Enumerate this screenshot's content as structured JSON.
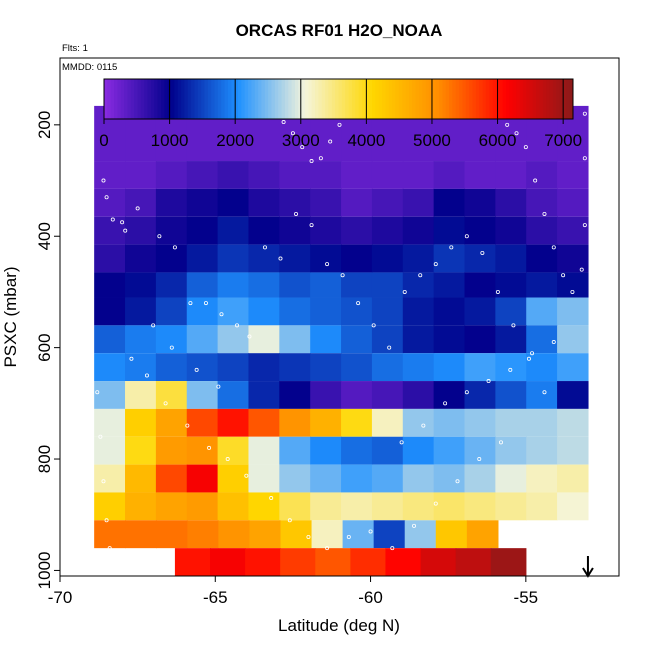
{
  "chart_data": {
    "type": "heatmap",
    "title": "ORCAS RF01 H2O_NOAA",
    "annotations": [
      "Flts: 1",
      "MMDD: 0115"
    ],
    "xlabel": "Latitude (deg N)",
    "ylabel": "PSXC (mbar)",
    "xlim": [
      -70,
      -52
    ],
    "ylim": [
      1010,
      80
    ],
    "x_ticks": [
      -70,
      -65,
      -60,
      -55
    ],
    "y_ticks": [
      200,
      400,
      600,
      800,
      1000
    ],
    "colorbar": {
      "min": 0,
      "max": 7150,
      "ticks": [
        0,
        1000,
        2000,
        3000,
        4000,
        5000,
        6000,
        7000
      ],
      "colors": [
        "#8a2be2",
        "#00008b",
        "#1e90ff",
        "#f5f5dc",
        "#ffd700",
        "#ff8c00",
        "#ff0000",
        "#8b1a1a"
      ]
    },
    "bands": [
      {
        "p_top": 166,
        "p_bot": 265,
        "x0": -68.9,
        "x1": -53.0,
        "values": [
          300,
          300,
          300,
          300,
          300,
          300,
          300,
          300,
          300,
          300,
          300,
          300,
          300,
          300,
          300,
          300
        ]
      },
      {
        "p_top": 265,
        "p_bot": 315,
        "x0": -68.9,
        "x1": -53.0,
        "values": [
          300,
          300,
          400,
          500,
          600,
          500,
          400,
          400,
          300,
          300,
          300,
          400,
          300,
          300,
          400,
          300
        ]
      },
      {
        "p_top": 315,
        "p_bot": 365,
        "x0": -68.9,
        "x1": -53.0,
        "values": [
          400,
          500,
          800,
          900,
          1000,
          800,
          700,
          600,
          400,
          500,
          600,
          1000,
          900,
          700,
          500,
          400
        ]
      },
      {
        "p_top": 365,
        "p_bot": 415,
        "x0": -68.9,
        "x1": -53.0,
        "values": [
          600,
          700,
          900,
          1000,
          1200,
          1000,
          900,
          800,
          700,
          800,
          900,
          1100,
          1000,
          900,
          700,
          600
        ]
      },
      {
        "p_top": 415,
        "p_bot": 465,
        "x0": -68.9,
        "x1": -53.0,
        "values": [
          700,
          900,
          1000,
          1200,
          1400,
          1300,
          1200,
          1100,
          1000,
          1100,
          1200,
          1400,
          1300,
          1200,
          1000,
          900
        ]
      },
      {
        "p_top": 465,
        "p_bot": 510,
        "x0": -68.9,
        "x1": -53.0,
        "values": [
          1000,
          1100,
          1300,
          1700,
          1900,
          1800,
          1600,
          1700,
          1500,
          1500,
          1300,
          1200,
          1000,
          1100,
          1200,
          1100
        ]
      },
      {
        "p_top": 510,
        "p_bot": 560,
        "x0": -68.9,
        "x1": -53.0,
        "values": [
          1000,
          1200,
          1500,
          2000,
          2200,
          2000,
          1800,
          1700,
          1600,
          1500,
          1200,
          1100,
          1200,
          1500,
          2300,
          2500
        ]
      },
      {
        "p_top": 560,
        "p_bot": 610,
        "x0": -68.9,
        "x1": -53.0,
        "values": [
          1700,
          1900,
          2000,
          2300,
          2600,
          3000,
          2500,
          2000,
          1700,
          1500,
          1200,
          1100,
          1000,
          1200,
          1800,
          2600
        ]
      },
      {
        "p_top": 610,
        "p_bot": 660,
        "x0": -68.9,
        "x1": -53.0,
        "values": [
          2000,
          1900,
          1700,
          1600,
          1500,
          1300,
          1400,
          1500,
          1600,
          1800,
          1900,
          2000,
          2200,
          2100,
          2000,
          2200
        ]
      },
      {
        "p_top": 660,
        "p_bot": 710,
        "x0": -68.9,
        "x1": -53.0,
        "values": [
          2500,
          3300,
          3800,
          2500,
          1800,
          1300,
          1000,
          600,
          400,
          500,
          700,
          1000,
          1300,
          1600,
          1900,
          1100
        ]
      },
      {
        "p_top": 710,
        "p_bot": 760,
        "x0": -68.9,
        "x1": -53.0,
        "values": [
          3000,
          4200,
          4800,
          5600,
          6000,
          5500,
          5000,
          4600,
          4000,
          3200,
          2600,
          2500,
          2600,
          2700,
          2700,
          2800
        ]
      },
      {
        "p_top": 760,
        "p_bot": 810,
        "x0": -68.9,
        "x1": -53.0,
        "values": [
          3000,
          4000,
          4900,
          5000,
          3900,
          3000,
          2300,
          2000,
          1800,
          1700,
          2000,
          2200,
          2400,
          2600,
          2700,
          2800
        ]
      },
      {
        "p_top": 810,
        "p_bot": 860,
        "x0": -68.9,
        "x1": -53.0,
        "values": [
          3300,
          4500,
          5600,
          6200,
          4200,
          3000,
          2600,
          2400,
          2200,
          2300,
          2600,
          2500,
          2700,
          3000,
          3200,
          3300
        ]
      },
      {
        "p_top": 860,
        "p_bot": 910,
        "x0": -68.9,
        "x1": -53.0,
        "values": [
          4200,
          4600,
          4800,
          4900,
          4400,
          4100,
          3700,
          3400,
          3300,
          3400,
          3500,
          3600,
          3500,
          3400,
          3300,
          3100
        ]
      },
      {
        "p_top": 910,
        "p_bot": 960,
        "x0": -68.9,
        "x1": -55.9,
        "values": [
          5300,
          5300,
          5300,
          5200,
          5000,
          4800,
          4300,
          3200,
          2400,
          1500,
          2600,
          4300,
          4800
        ]
      },
      {
        "p_top": 960,
        "p_bot": 1010,
        "x0": -66.3,
        "x1": -55.0,
        "values": [
          6000,
          6200,
          6000,
          5700,
          5500,
          5800,
          6100,
          6500,
          6700,
          7000
        ]
      }
    ],
    "points": [
      [
        -68.6,
        300
      ],
      [
        -68.5,
        330
      ],
      [
        -68.3,
        370
      ],
      [
        -68.0,
        375
      ],
      [
        -67.6,
        180
      ],
      [
        -67.3,
        180
      ],
      [
        -67.0,
        180
      ],
      [
        -66.7,
        180
      ],
      [
        -66.4,
        180
      ],
      [
        -66.1,
        180
      ],
      [
        -65.8,
        180
      ],
      [
        -65.5,
        180
      ],
      [
        -65.2,
        180
      ],
      [
        -64.9,
        180
      ],
      [
        -64.6,
        180
      ],
      [
        -64.3,
        180
      ],
      [
        -64.0,
        180
      ],
      [
        -63.7,
        180
      ],
      [
        -63.4,
        180
      ],
      [
        -63.1,
        180
      ],
      [
        -62.8,
        195
      ],
      [
        -62.5,
        215
      ],
      [
        -62.2,
        240
      ],
      [
        -61.9,
        265
      ],
      [
        -61.6,
        260
      ],
      [
        -61.3,
        230
      ],
      [
        -61.0,
        200
      ],
      [
        -60.7,
        180
      ],
      [
        -60.4,
        180
      ],
      [
        -60.1,
        180
      ],
      [
        -59.8,
        180
      ],
      [
        -59.5,
        180
      ],
      [
        -59.2,
        180
      ],
      [
        -58.9,
        180
      ],
      [
        -58.6,
        180
      ],
      [
        -58.3,
        180
      ],
      [
        -58.0,
        180
      ],
      [
        -57.7,
        180
      ],
      [
        -57.4,
        180
      ],
      [
        -57.1,
        180
      ],
      [
        -56.8,
        180
      ],
      [
        -56.5,
        180
      ],
      [
        -56.2,
        180
      ],
      [
        -55.9,
        180
      ],
      [
        -55.6,
        200
      ],
      [
        -55.3,
        215
      ],
      [
        -55.0,
        240
      ],
      [
        -54.7,
        300
      ],
      [
        -54.4,
        360
      ],
      [
        -54.1,
        420
      ],
      [
        -53.8,
        470
      ],
      [
        -53.5,
        500
      ],
      [
        -53.2,
        460
      ],
      [
        -53.1,
        380
      ],
      [
        -53.1,
        260
      ],
      [
        -53.1,
        180
      ],
      [
        -67.9,
        390
      ],
      [
        -67.5,
        350
      ],
      [
        -66.8,
        400
      ],
      [
        -66.3,
        420
      ],
      [
        -65.8,
        520
      ],
      [
        -65.3,
        520
      ],
      [
        -64.8,
        540
      ],
      [
        -64.3,
        560
      ],
      [
        -63.9,
        580
      ],
      [
        -63.4,
        420
      ],
      [
        -62.9,
        440
      ],
      [
        -62.4,
        360
      ],
      [
        -61.9,
        380
      ],
      [
        -61.4,
        450
      ],
      [
        -60.9,
        470
      ],
      [
        -60.4,
        520
      ],
      [
        -59.9,
        560
      ],
      [
        -59.4,
        600
      ],
      [
        -58.9,
        500
      ],
      [
        -58.4,
        470
      ],
      [
        -57.9,
        450
      ],
      [
        -57.4,
        420
      ],
      [
        -56.9,
        400
      ],
      [
        -56.4,
        430
      ],
      [
        -55.9,
        500
      ],
      [
        -55.4,
        560
      ],
      [
        -54.9,
        620
      ],
      [
        -54.4,
        680
      ],
      [
        -67.2,
        650
      ],
      [
        -66.6,
        700
      ],
      [
        -65.9,
        740
      ],
      [
        -65.2,
        780
      ],
      [
        -64.6,
        800
      ],
      [
        -64.0,
        830
      ],
      [
        -63.2,
        870
      ],
      [
        -62.6,
        910
      ],
      [
        -62.0,
        940
      ],
      [
        -61.4,
        960
      ],
      [
        -60.7,
        940
      ],
      [
        -60.0,
        930
      ],
      [
        -59.3,
        960
      ],
      [
        -58.6,
        920
      ],
      [
        -57.9,
        880
      ],
      [
        -57.2,
        840
      ],
      [
        -56.5,
        800
      ],
      [
        -55.8,
        770
      ],
      [
        -68.8,
        680
      ],
      [
        -68.7,
        760
      ],
      [
        -68.6,
        840
      ],
      [
        -68.5,
        910
      ],
      [
        -68.4,
        960
      ],
      [
        -67.7,
        620
      ],
      [
        -67.0,
        560
      ],
      [
        -66.4,
        600
      ],
      [
        -65.6,
        640
      ],
      [
        -64.9,
        670
      ],
      [
        -59.0,
        770
      ],
      [
        -58.3,
        740
      ],
      [
        -57.6,
        700
      ],
      [
        -56.9,
        680
      ],
      [
        -56.2,
        660
      ],
      [
        -55.5,
        640
      ],
      [
        -54.8,
        610
      ],
      [
        -54.1,
        590
      ]
    ],
    "arrow_x": -53.0
  }
}
